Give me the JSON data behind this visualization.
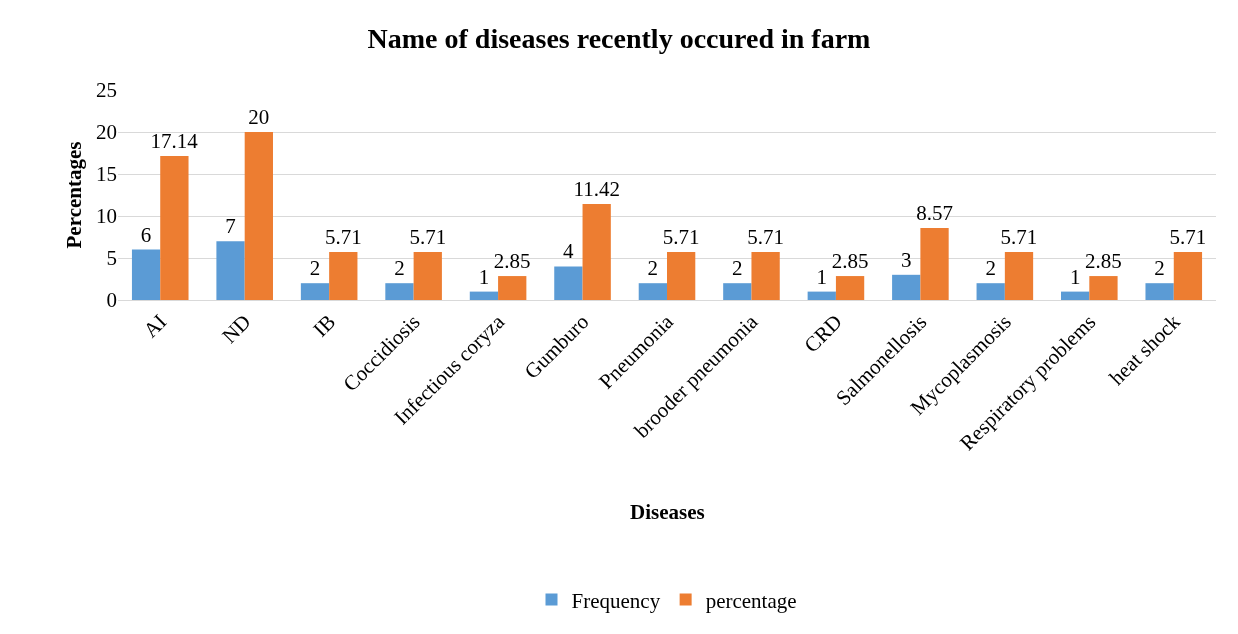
{
  "chart_data": {
    "type": "bar",
    "title": "Name of diseases recently occured in farm",
    "xlabel": "Diseases",
    "ylabel": "Percentages",
    "categories": [
      "AI",
      "ND",
      "IB",
      "Coccidiosis",
      "Infectious coryza",
      "Gumburo",
      "Pneumonia",
      "brooder pneumonia",
      "CRD",
      "Salmonellosis",
      "Mycoplasmosis",
      "Respiratory problems",
      "heat shock"
    ],
    "series": [
      {
        "name": "Frequency",
        "color": "#5b9bd5",
        "values": [
          6,
          7,
          2,
          2,
          1,
          4,
          2,
          2,
          1,
          3,
          2,
          1,
          2
        ]
      },
      {
        "name": "percentage",
        "color": "#ed7d31",
        "values": [
          17.14,
          20,
          5.71,
          5.71,
          2.85,
          11.42,
          5.71,
          5.71,
          2.85,
          8.57,
          5.71,
          2.85,
          5.71
        ]
      }
    ],
    "ylim": [
      0,
      25
    ],
    "yticks": [
      0,
      5,
      10,
      15,
      20,
      25
    ],
    "grid": "y",
    "legend": "bottom",
    "data_labels": true
  }
}
